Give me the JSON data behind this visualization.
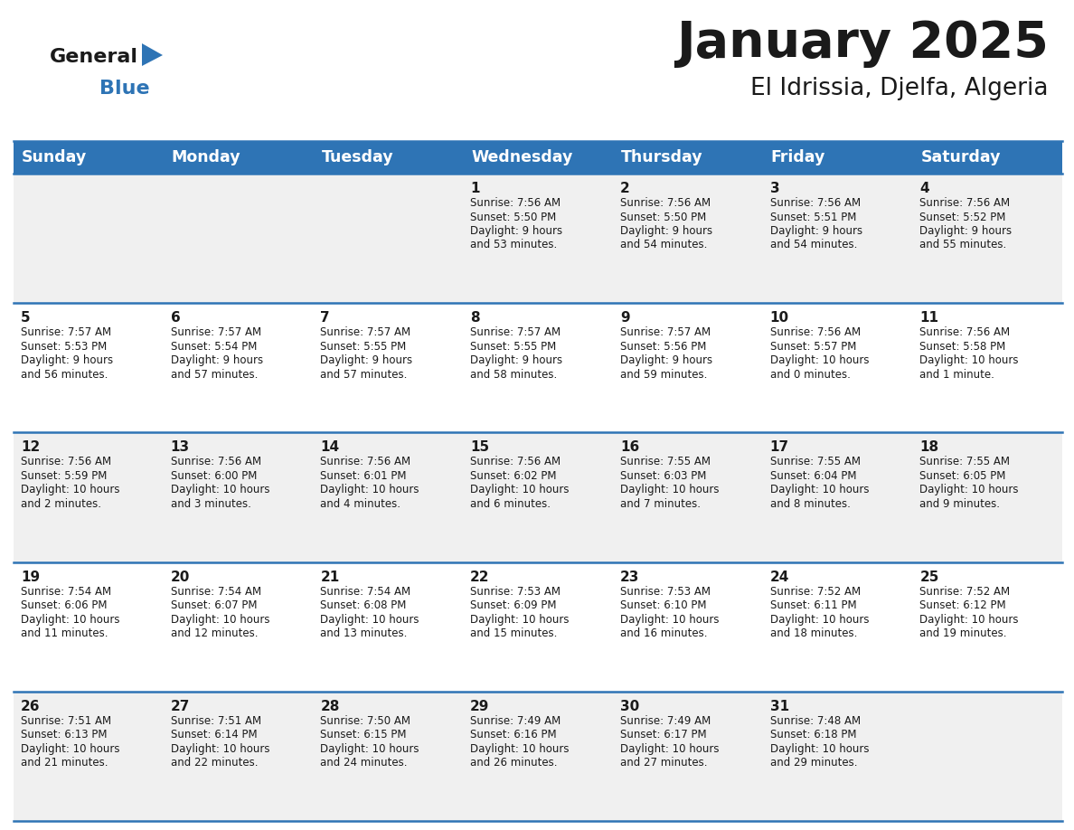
{
  "title": "January 2025",
  "subtitle": "El Idrissia, Djelfa, Algeria",
  "header_bg": "#2E74B5",
  "header_text": "#FFFFFF",
  "row_bg_odd": "#F0F0F0",
  "row_bg_even": "#FFFFFF",
  "separator_color": "#2E74B5",
  "day_names": [
    "Sunday",
    "Monday",
    "Tuesday",
    "Wednesday",
    "Thursday",
    "Friday",
    "Saturday"
  ],
  "days": [
    {
      "day": 1,
      "col": 3,
      "row": 0,
      "sunrise": "7:56 AM",
      "sunset": "5:50 PM",
      "daylight_h": "9 hours",
      "daylight_m": "and 53 minutes."
    },
    {
      "day": 2,
      "col": 4,
      "row": 0,
      "sunrise": "7:56 AM",
      "sunset": "5:50 PM",
      "daylight_h": "9 hours",
      "daylight_m": "and 54 minutes."
    },
    {
      "day": 3,
      "col": 5,
      "row": 0,
      "sunrise": "7:56 AM",
      "sunset": "5:51 PM",
      "daylight_h": "9 hours",
      "daylight_m": "and 54 minutes."
    },
    {
      "day": 4,
      "col": 6,
      "row": 0,
      "sunrise": "7:56 AM",
      "sunset": "5:52 PM",
      "daylight_h": "9 hours",
      "daylight_m": "and 55 minutes."
    },
    {
      "day": 5,
      "col": 0,
      "row": 1,
      "sunrise": "7:57 AM",
      "sunset": "5:53 PM",
      "daylight_h": "9 hours",
      "daylight_m": "and 56 minutes."
    },
    {
      "day": 6,
      "col": 1,
      "row": 1,
      "sunrise": "7:57 AM",
      "sunset": "5:54 PM",
      "daylight_h": "9 hours",
      "daylight_m": "and 57 minutes."
    },
    {
      "day": 7,
      "col": 2,
      "row": 1,
      "sunrise": "7:57 AM",
      "sunset": "5:55 PM",
      "daylight_h": "9 hours",
      "daylight_m": "and 57 minutes."
    },
    {
      "day": 8,
      "col": 3,
      "row": 1,
      "sunrise": "7:57 AM",
      "sunset": "5:55 PM",
      "daylight_h": "9 hours",
      "daylight_m": "and 58 minutes."
    },
    {
      "day": 9,
      "col": 4,
      "row": 1,
      "sunrise": "7:57 AM",
      "sunset": "5:56 PM",
      "daylight_h": "9 hours",
      "daylight_m": "and 59 minutes."
    },
    {
      "day": 10,
      "col": 5,
      "row": 1,
      "sunrise": "7:56 AM",
      "sunset": "5:57 PM",
      "daylight_h": "10 hours",
      "daylight_m": "and 0 minutes."
    },
    {
      "day": 11,
      "col": 6,
      "row": 1,
      "sunrise": "7:56 AM",
      "sunset": "5:58 PM",
      "daylight_h": "10 hours",
      "daylight_m": "and 1 minute."
    },
    {
      "day": 12,
      "col": 0,
      "row": 2,
      "sunrise": "7:56 AM",
      "sunset": "5:59 PM",
      "daylight_h": "10 hours",
      "daylight_m": "and 2 minutes."
    },
    {
      "day": 13,
      "col": 1,
      "row": 2,
      "sunrise": "7:56 AM",
      "sunset": "6:00 PM",
      "daylight_h": "10 hours",
      "daylight_m": "and 3 minutes."
    },
    {
      "day": 14,
      "col": 2,
      "row": 2,
      "sunrise": "7:56 AM",
      "sunset": "6:01 PM",
      "daylight_h": "10 hours",
      "daylight_m": "and 4 minutes."
    },
    {
      "day": 15,
      "col": 3,
      "row": 2,
      "sunrise": "7:56 AM",
      "sunset": "6:02 PM",
      "daylight_h": "10 hours",
      "daylight_m": "and 6 minutes."
    },
    {
      "day": 16,
      "col": 4,
      "row": 2,
      "sunrise": "7:55 AM",
      "sunset": "6:03 PM",
      "daylight_h": "10 hours",
      "daylight_m": "and 7 minutes."
    },
    {
      "day": 17,
      "col": 5,
      "row": 2,
      "sunrise": "7:55 AM",
      "sunset": "6:04 PM",
      "daylight_h": "10 hours",
      "daylight_m": "and 8 minutes."
    },
    {
      "day": 18,
      "col": 6,
      "row": 2,
      "sunrise": "7:55 AM",
      "sunset": "6:05 PM",
      "daylight_h": "10 hours",
      "daylight_m": "and 9 minutes."
    },
    {
      "day": 19,
      "col": 0,
      "row": 3,
      "sunrise": "7:54 AM",
      "sunset": "6:06 PM",
      "daylight_h": "10 hours",
      "daylight_m": "and 11 minutes."
    },
    {
      "day": 20,
      "col": 1,
      "row": 3,
      "sunrise": "7:54 AM",
      "sunset": "6:07 PM",
      "daylight_h": "10 hours",
      "daylight_m": "and 12 minutes."
    },
    {
      "day": 21,
      "col": 2,
      "row": 3,
      "sunrise": "7:54 AM",
      "sunset": "6:08 PM",
      "daylight_h": "10 hours",
      "daylight_m": "and 13 minutes."
    },
    {
      "day": 22,
      "col": 3,
      "row": 3,
      "sunrise": "7:53 AM",
      "sunset": "6:09 PM",
      "daylight_h": "10 hours",
      "daylight_m": "and 15 minutes."
    },
    {
      "day": 23,
      "col": 4,
      "row": 3,
      "sunrise": "7:53 AM",
      "sunset": "6:10 PM",
      "daylight_h": "10 hours",
      "daylight_m": "and 16 minutes."
    },
    {
      "day": 24,
      "col": 5,
      "row": 3,
      "sunrise": "7:52 AM",
      "sunset": "6:11 PM",
      "daylight_h": "10 hours",
      "daylight_m": "and 18 minutes."
    },
    {
      "day": 25,
      "col": 6,
      "row": 3,
      "sunrise": "7:52 AM",
      "sunset": "6:12 PM",
      "daylight_h": "10 hours",
      "daylight_m": "and 19 minutes."
    },
    {
      "day": 26,
      "col": 0,
      "row": 4,
      "sunrise": "7:51 AM",
      "sunset": "6:13 PM",
      "daylight_h": "10 hours",
      "daylight_m": "and 21 minutes."
    },
    {
      "day": 27,
      "col": 1,
      "row": 4,
      "sunrise": "7:51 AM",
      "sunset": "6:14 PM",
      "daylight_h": "10 hours",
      "daylight_m": "and 22 minutes."
    },
    {
      "day": 28,
      "col": 2,
      "row": 4,
      "sunrise": "7:50 AM",
      "sunset": "6:15 PM",
      "daylight_h": "10 hours",
      "daylight_m": "and 24 minutes."
    },
    {
      "day": 29,
      "col": 3,
      "row": 4,
      "sunrise": "7:49 AM",
      "sunset": "6:16 PM",
      "daylight_h": "10 hours",
      "daylight_m": "and 26 minutes."
    },
    {
      "day": 30,
      "col": 4,
      "row": 4,
      "sunrise": "7:49 AM",
      "sunset": "6:17 PM",
      "daylight_h": "10 hours",
      "daylight_m": "and 27 minutes."
    },
    {
      "day": 31,
      "col": 5,
      "row": 4,
      "sunrise": "7:48 AM",
      "sunset": "6:18 PM",
      "daylight_h": "10 hours",
      "daylight_m": "and 29 minutes."
    }
  ],
  "num_rows": 5,
  "num_cols": 7,
  "logo_general_color": "#1a1a1a",
  "logo_blue_color": "#2E74B5",
  "logo_triangle_color": "#2E74B5"
}
